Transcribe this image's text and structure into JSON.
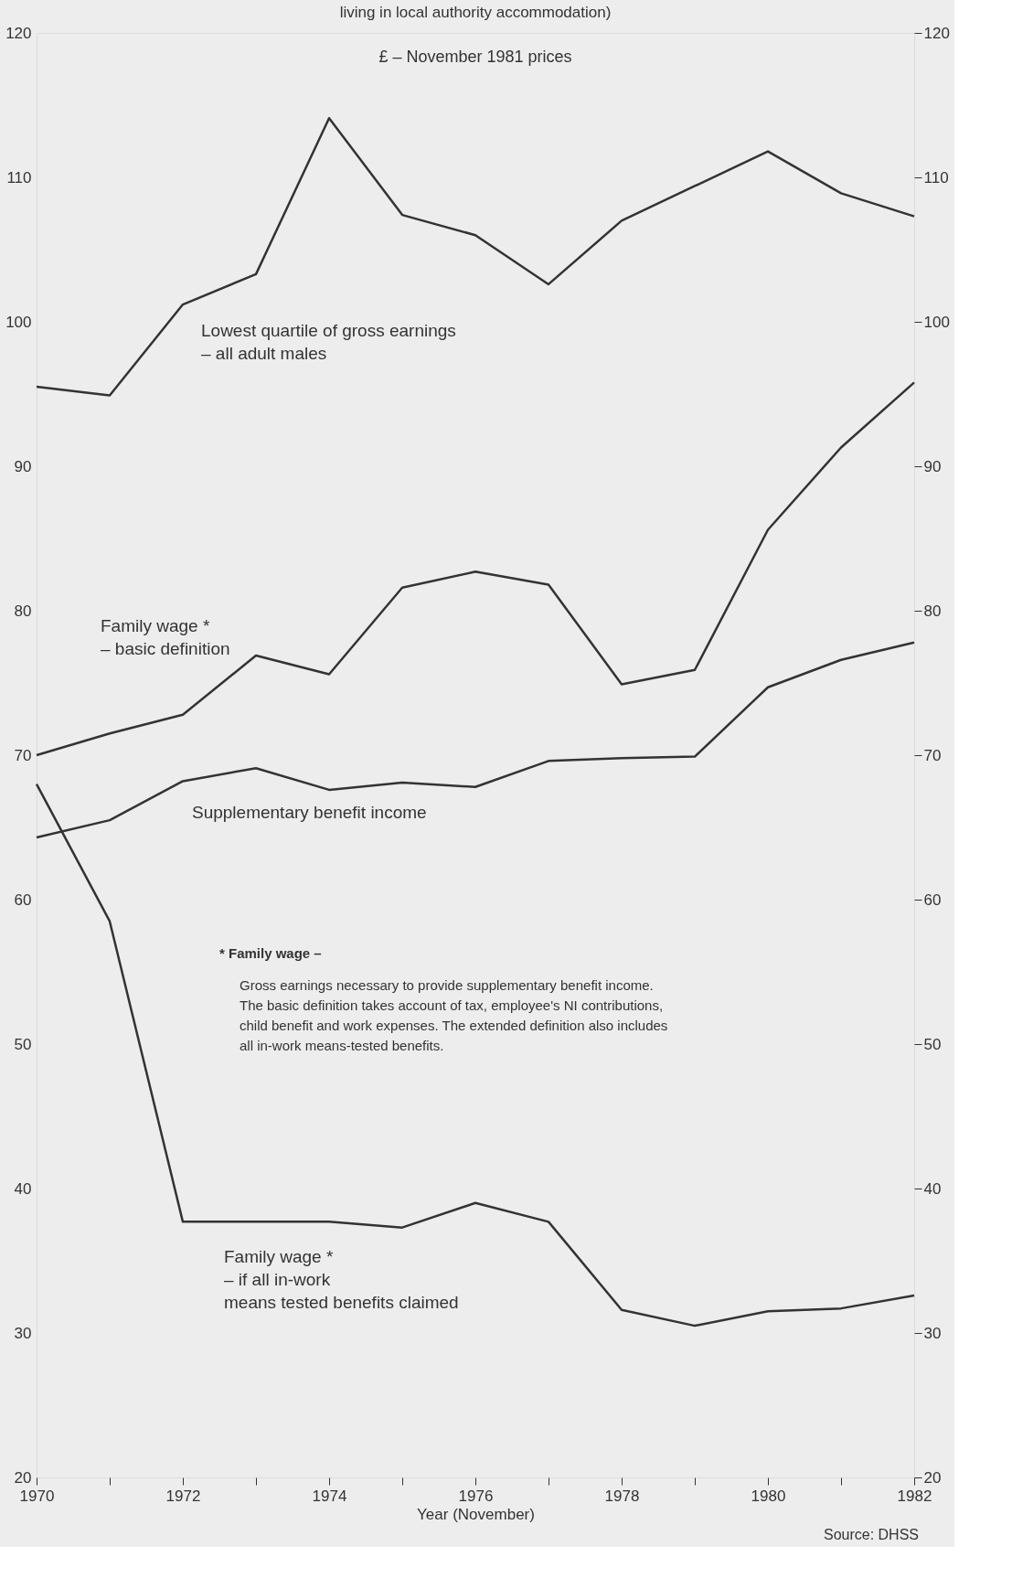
{
  "chart_data": {
    "type": "line",
    "title": "living in local authority accommodation)",
    "xlabel": "Year (November)",
    "x": [
      1970,
      1971,
      1972,
      1973,
      1974,
      1975,
      1976,
      1977,
      1978,
      1979,
      1980,
      1981,
      1982
    ],
    "series": [
      {
        "name": "Lowest quartile of gross earnings\n– all adult males",
        "color": "#333333",
        "values": [
          95.5,
          94.9,
          101.2,
          103.3,
          114.1,
          107.4,
          106.0,
          102.6,
          107.0,
          109.4,
          111.8,
          108.9,
          107.3
        ]
      },
      {
        "name": "Family wage *\n– basic definition",
        "color": "#333333",
        "values": [
          70.0,
          71.5,
          72.8,
          76.9,
          75.6,
          81.6,
          82.7,
          81.8,
          74.9,
          75.9,
          85.6,
          91.3,
          95.8
        ]
      },
      {
        "name": "Supplementary benefit income",
        "color": "#333333",
        "values": [
          64.3,
          65.5,
          68.2,
          69.1,
          67.6,
          68.1,
          67.8,
          69.6,
          69.8,
          69.9,
          74.7,
          76.6,
          77.8
        ]
      },
      {
        "name": "Family wage *\n– if all in-work\nmeans tested benefits claimed",
        "color": "#333333",
        "values": [
          68.0,
          58.5,
          37.7,
          37.7,
          37.7,
          37.3,
          39.0,
          37.7,
          31.6,
          30.5,
          31.5,
          31.7,
          32.6
        ]
      }
    ],
    "xlim": [
      1970,
      1982
    ],
    "xticks": [
      1970,
      {
        "value": 1971,
        "label": null
      },
      1972,
      {
        "value": 1973,
        "label": null
      },
      1974,
      {
        "value": 1975,
        "label": null
      },
      1976,
      {
        "value": 1977,
        "label": null
      },
      1978,
      {
        "value": 1979,
        "label": null
      },
      1980,
      {
        "value": 1981,
        "label": null
      },
      1982
    ],
    "ylim": [
      20,
      120
    ],
    "yticks": [
      20,
      30,
      40,
      50,
      60,
      70,
      80,
      90,
      100,
      110,
      120
    ],
    "y2lim": [
      20,
      120
    ],
    "y2ticks": [
      20,
      30,
      40,
      50,
      60,
      70,
      80,
      90,
      100,
      110,
      120
    ],
    "annotations": [
      "£ – November 1981 prices",
      "* Family wage –",
      "Gross earnings necessary to provide supplementary benefit income.\nThe basic definition takes account of tax, employee's NI contributions,\nchild benefit and work expenses. The extended definition also includes\nall in-work means-tested benefits.",
      "Source: DHSS"
    ],
    "grid": false,
    "marker": "none",
    "line_style": "solid"
  }
}
